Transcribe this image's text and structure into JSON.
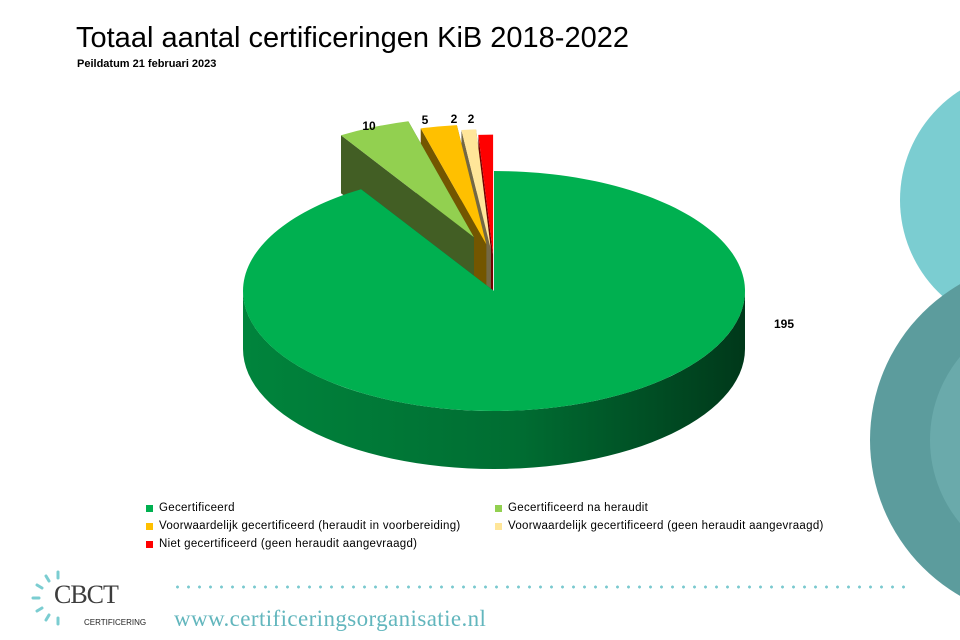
{
  "slide": {
    "title": "Totaal aantal certificeringen KiB 2018-2022",
    "subtitle": "Peildatum 21 februari 2023",
    "website": "www.certificeringsorganisatie.nl",
    "logo_text": "CBCT",
    "logo_sub": "CERTIFICERING"
  },
  "chart_data": {
    "type": "pie",
    "style": "3d-exploded",
    "categories": [
      "Gecertificeerd",
      "Gecertificeerd na heraudit",
      "Voorwaardelijk gecertificeerd (heraudit in voorbereiding)",
      "Voorwaardelijk gecertificeerd (geen heraudit aangevraagd)",
      "Niet gecertificeerd (geen heraudit aangevraagd)"
    ],
    "values": [
      195,
      10,
      5,
      2,
      2
    ],
    "data_labels": [
      "195",
      "10",
      "5",
      "2",
      "2"
    ],
    "colors": [
      "#00b050",
      "#92d050",
      "#ffc000",
      "#ffe699",
      "#ff0000"
    ],
    "legend_placement": "bottom"
  },
  "colors": {
    "teal_light": "#7bcdd1",
    "teal_dark": "#5a9a9b",
    "website": "#62b6bd"
  }
}
